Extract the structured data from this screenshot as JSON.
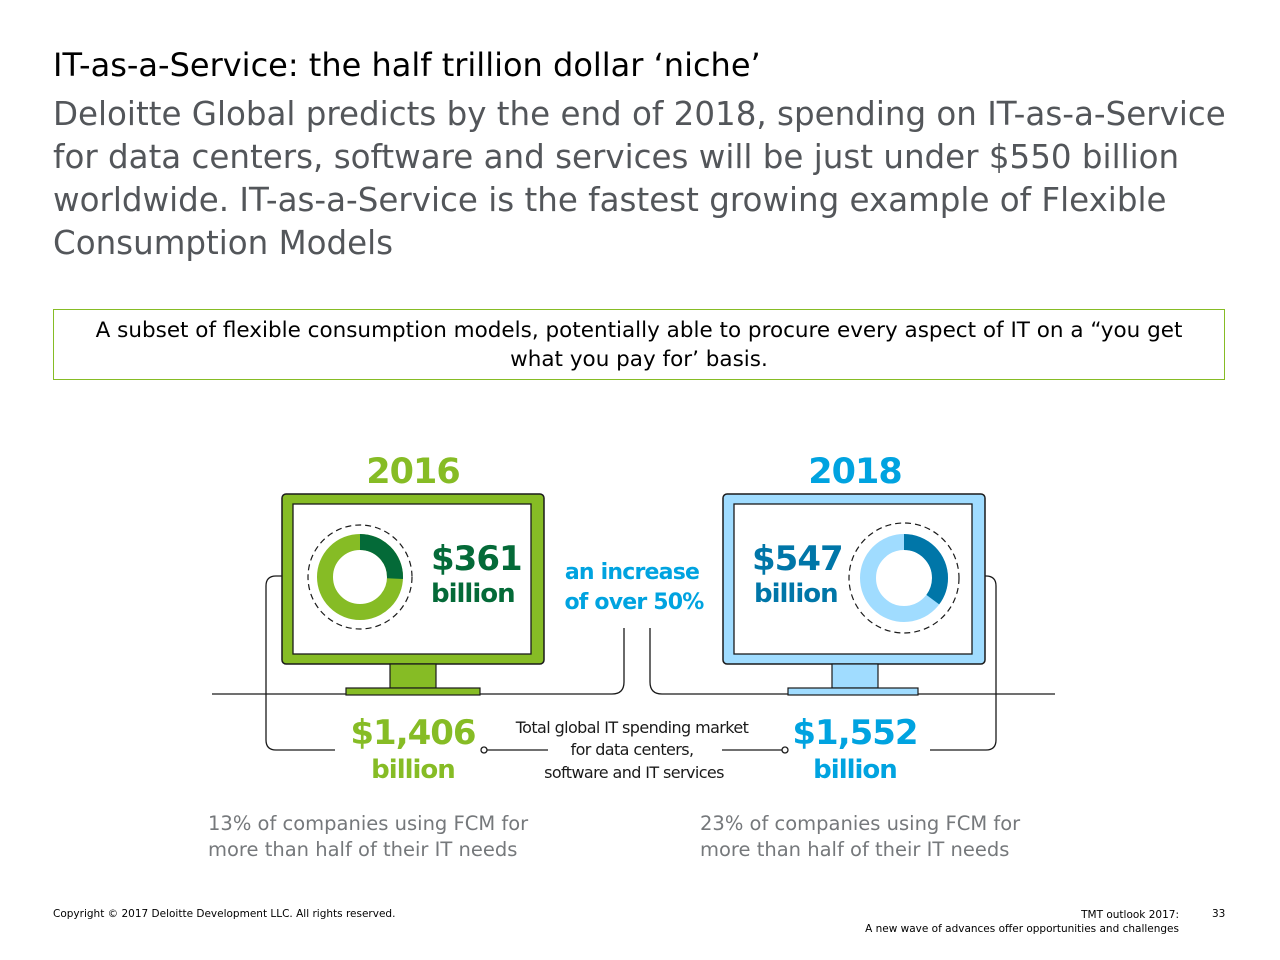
{
  "title": "IT-as-a-Service: the half trillion dollar ‘niche’",
  "subtitle": "Deloitte Global predicts by the end of 2018, spending on IT-as-a-Service for data centers, software and services will be just under $550 billion worldwide. IT-as-a-Service is the fastest growing example of Flexible Consumption Models",
  "callout": "A subset of flexible consumption models, potentially able to procure every aspect of IT on a “you get what you pay for’ basis.",
  "infographic": {
    "left": {
      "year": "2016",
      "value": "$361",
      "value_unit": "billion",
      "total": "$1,406",
      "total_unit": "billion",
      "donut_share": 0.257,
      "color_main": "#86bc25",
      "color_dark": "#046a38"
    },
    "right": {
      "year": "2018",
      "value": "$547",
      "value_unit": "billion",
      "total": "$1,552",
      "total_unit": "billion",
      "donut_share": 0.352,
      "color_main": "#a0dcff",
      "color_accent": "#00a3e0",
      "color_dark": "#0076a8"
    },
    "increase_line1": "an increase",
    "increase_line2": "of over 50%",
    "market_line1": "Total global IT spending market",
    "market_line2": "for data centers,",
    "market_line3": "software and IT services"
  },
  "notes": {
    "left_line1": "13% of companies using FCM for",
    "left_line2": "more than half of their IT needs",
    "right_line1": "23% of companies using FCM for",
    "right_line2": "more than half of their IT needs"
  },
  "footer": {
    "copyright": "Copyright © 2017 Deloitte Development LLC. All rights reserved.",
    "publication_line1": "TMT outlook 2017:",
    "publication_line2": "A new wave of advances offer opportunities and challenges",
    "page_number": "33"
  }
}
